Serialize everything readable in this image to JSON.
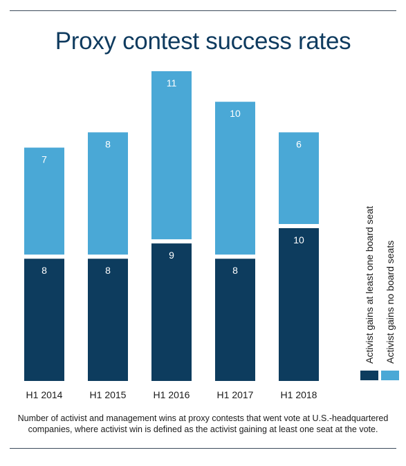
{
  "chart_data": {
    "type": "bar",
    "stacked": true,
    "title": "Proxy contest success rates",
    "categories": [
      "H1 2014",
      "H1 2015",
      "H1 2016",
      "H1 2017",
      "H1 2018"
    ],
    "series": [
      {
        "name": "Activist gains at least one board seat",
        "values": [
          8,
          8,
          9,
          8,
          10
        ],
        "color": "#0d3c5e"
      },
      {
        "name": "Activist gains no board seats",
        "values": [
          7,
          8,
          11,
          10,
          6
        ],
        "color": "#4aa8d6"
      }
    ],
    "legend_position": "right (vertical)",
    "grid": false,
    "y_axis_visible": false,
    "data_labels": true
  },
  "caption": "Number of activist and management wins at proxy contests that went vote at U.S.-headquartered companies, where activist win is defined as the activist gaining at least one seat at the vote."
}
